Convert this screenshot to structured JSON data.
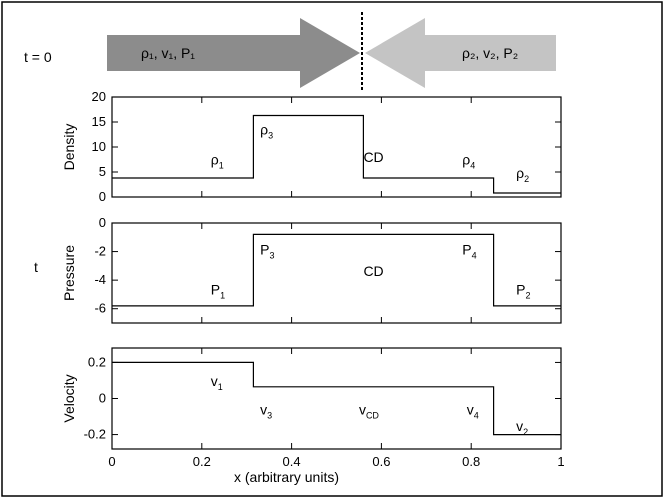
{
  "header": {
    "t0_label": "t = 0",
    "t_label": "t",
    "left_state": "ρ₁, v₁, P₁",
    "right_state": "ρ₂, v₂, P₂",
    "left_arrow_color": "#8c8c8c",
    "right_arrow_color": "#c4c4c4"
  },
  "chart_data": [
    {
      "type": "line",
      "ylabel": "Density",
      "xlim": [
        0,
        1
      ],
      "ylim": [
        0,
        20
      ],
      "yticks": [
        "20",
        "15",
        "10",
        "5",
        "0"
      ],
      "ytick_values": [
        20,
        15,
        10,
        5,
        0
      ],
      "x": [
        0,
        0.315,
        0.315,
        0.56,
        0.56,
        0.85,
        0.85,
        1.0
      ],
      "y": [
        3.8,
        3.8,
        16.3,
        16.3,
        3.8,
        3.8,
        0.8,
        0.8
      ],
      "annotations": [
        {
          "base": "ρ",
          "sub": "1",
          "x": 0.22,
          "y": 6.5
        },
        {
          "base": "ρ",
          "sub": "3",
          "x": 0.33,
          "y": 12.5
        },
        {
          "base": "CD",
          "sub": "",
          "x": 0.56,
          "y": 7.0
        },
        {
          "base": "ρ",
          "sub": "4",
          "x": 0.78,
          "y": 6.5
        },
        {
          "base": "ρ",
          "sub": "2",
          "x": 0.9,
          "y": 3.8
        }
      ]
    },
    {
      "type": "line",
      "ylabel": "Pressure",
      "xlim": [
        0,
        1
      ],
      "ylim": [
        -7,
        0
      ],
      "yticks": [
        "0",
        "-2",
        "-4",
        "-6"
      ],
      "ytick_values": [
        0,
        -2,
        -4,
        -6
      ],
      "x": [
        0,
        0.315,
        0.315,
        0.85,
        0.85,
        1.0
      ],
      "y": [
        -5.8,
        -5.8,
        -0.8,
        -0.8,
        -5.8,
        -5.8
      ],
      "annotations": [
        {
          "base": "P",
          "sub": "3",
          "x": 0.33,
          "y": -2.2
        },
        {
          "base": "CD",
          "sub": "",
          "x": 0.56,
          "y": -3.7
        },
        {
          "base": "P",
          "sub": "4",
          "x": 0.78,
          "y": -2.2
        },
        {
          "base": "P",
          "sub": "1",
          "x": 0.22,
          "y": -5.0
        },
        {
          "base": "P",
          "sub": "2",
          "x": 0.9,
          "y": -5.0
        }
      ]
    },
    {
      "type": "line",
      "ylabel": "Velocity",
      "xlabel": "x (arbitrary units)",
      "xlim": [
        0,
        1
      ],
      "ylim": [
        -0.28,
        0.28
      ],
      "yticks": [
        "0.2",
        "0",
        "-0.2"
      ],
      "ytick_values": [
        0.2,
        0,
        -0.2
      ],
      "xticks": [
        "0",
        "0.2",
        "0.4",
        "0.6",
        "0.8",
        "1"
      ],
      "xtick_values": [
        0,
        0.2,
        0.4,
        0.6,
        0.8,
        1
      ],
      "x": [
        0,
        0.315,
        0.315,
        0.85,
        0.85,
        1.0
      ],
      "y": [
        0.2,
        0.2,
        0.065,
        0.065,
        -0.2,
        -0.2
      ],
      "annotations": [
        {
          "base": "v",
          "sub": "1",
          "x": 0.22,
          "y": 0.07
        },
        {
          "base": "v",
          "sub": "3",
          "x": 0.33,
          "y": -0.09
        },
        {
          "base": "v",
          "sub": "CD",
          "x": 0.55,
          "y": -0.09
        },
        {
          "base": "v",
          "sub": "4",
          "x": 0.79,
          "y": -0.09
        },
        {
          "base": "v",
          "sub": "2",
          "x": 0.9,
          "y": -0.18
        }
      ]
    }
  ]
}
